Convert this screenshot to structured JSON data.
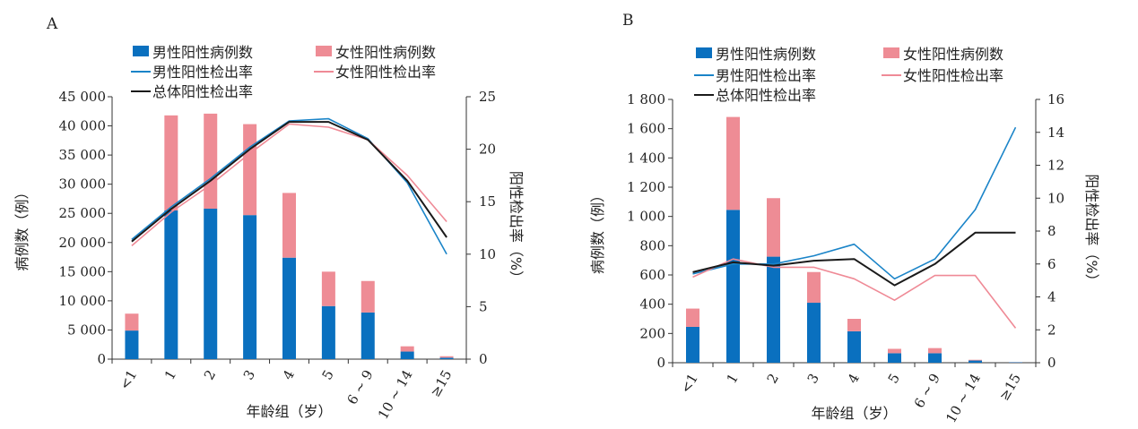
{
  "legend": {
    "male_cases": "男性阳性病例数",
    "female_cases": "女性阳性病例数",
    "male_rate": "男性阳性检出率",
    "female_rate": "女性阳性检出率",
    "total_rate": "总体阳性检出率"
  },
  "colors": {
    "male_bar": "#0a70bf",
    "female_bar": "#ee8c95",
    "male_line": "#1a84c8",
    "female_line": "#ef8a96",
    "total_line": "#1a1a1a"
  },
  "chart_data": [
    {
      "panel": "A",
      "type": "bar",
      "categories": [
        "<1",
        "1",
        "2",
        "3",
        "4",
        "5",
        "6 ~ 9",
        "10 ~ 14",
        "≥15"
      ],
      "xlabel": "年龄组（岁）",
      "ylabel": "病例数（例）",
      "y2label": "阳性检出率（%）",
      "ylim": [
        0,
        45000
      ],
      "yticks": [
        0,
        5000,
        10000,
        15000,
        20000,
        25000,
        30000,
        35000,
        40000,
        45000
      ],
      "ytick_labels": [
        "0",
        "5 000",
        "10 000",
        "15 000",
        "20 000",
        "25 000",
        "30 000",
        "35 000",
        "40 000",
        "45 000"
      ],
      "y2lim": [
        0,
        25
      ],
      "y2ticks": [
        0,
        5,
        10,
        15,
        20,
        25
      ],
      "stacked": true,
      "series": [
        {
          "name": "男性阳性病例数",
          "kind": "bar",
          "axis": "left",
          "values": [
            4900,
            25500,
            25800,
            24700,
            17400,
            9100,
            8000,
            1300,
            250
          ]
        },
        {
          "name": "女性阳性病例数",
          "kind": "bar",
          "axis": "left",
          "values": [
            2900,
            16300,
            16300,
            15600,
            11100,
            5900,
            5400,
            900,
            250
          ]
        },
        {
          "name": "男性阳性检出率",
          "kind": "line",
          "axis": "right",
          "values": [
            11.4,
            14.5,
            17.2,
            20.2,
            22.7,
            22.9,
            21.0,
            16.8,
            10.0
          ]
        },
        {
          "name": "女性阳性检出率",
          "kind": "line",
          "axis": "right",
          "values": [
            10.8,
            14.0,
            16.6,
            19.6,
            22.4,
            22.1,
            20.9,
            17.5,
            13.1
          ]
        },
        {
          "name": "总体阳性检出率",
          "kind": "line",
          "axis": "right",
          "values": [
            11.2,
            14.3,
            17.0,
            20.0,
            22.6,
            22.6,
            20.9,
            17.0,
            11.6
          ]
        }
      ]
    },
    {
      "panel": "B",
      "type": "bar",
      "categories": [
        "<1",
        "1",
        "2",
        "3",
        "4",
        "5",
        "6 ~ 9",
        "10 ~ 14",
        "≥15"
      ],
      "xlabel": "年龄组（岁）",
      "ylabel": "病例数（例）",
      "y2label": "阳性检出率（%）",
      "ylim": [
        0,
        1800
      ],
      "yticks": [
        0,
        200,
        400,
        600,
        800,
        1000,
        1200,
        1400,
        1600,
        1800
      ],
      "ytick_labels": [
        "0",
        "200",
        "400",
        "600",
        "800",
        "1 000",
        "1 200",
        "1 400",
        "1 600",
        "1 800"
      ],
      "y2lim": [
        0,
        16
      ],
      "y2ticks": [
        0,
        2,
        4,
        6,
        8,
        10,
        12,
        14,
        16
      ],
      "stacked": true,
      "series": [
        {
          "name": "男性阳性病例数",
          "kind": "bar",
          "axis": "left",
          "values": [
            245,
            1045,
            725,
            410,
            215,
            65,
            65,
            15,
            3
          ]
        },
        {
          "name": "女性阳性病例数",
          "kind": "bar",
          "axis": "left",
          "values": [
            125,
            635,
            400,
            210,
            85,
            30,
            35,
            5,
            1
          ]
        },
        {
          "name": "男性阳性检出率",
          "kind": "line",
          "axis": "right",
          "values": [
            5.4,
            6.0,
            6.0,
            6.5,
            7.2,
            5.1,
            6.3,
            9.3,
            14.3
          ]
        },
        {
          "name": "女性阳性检出率",
          "kind": "line",
          "axis": "right",
          "values": [
            5.2,
            6.3,
            5.8,
            5.8,
            5.1,
            3.8,
            5.3,
            5.3,
            2.1
          ]
        },
        {
          "name": "总体阳性检出率",
          "kind": "line",
          "axis": "right",
          "values": [
            5.5,
            6.1,
            5.9,
            6.2,
            6.3,
            4.7,
            6.0,
            7.9,
            7.9
          ]
        }
      ]
    }
  ]
}
